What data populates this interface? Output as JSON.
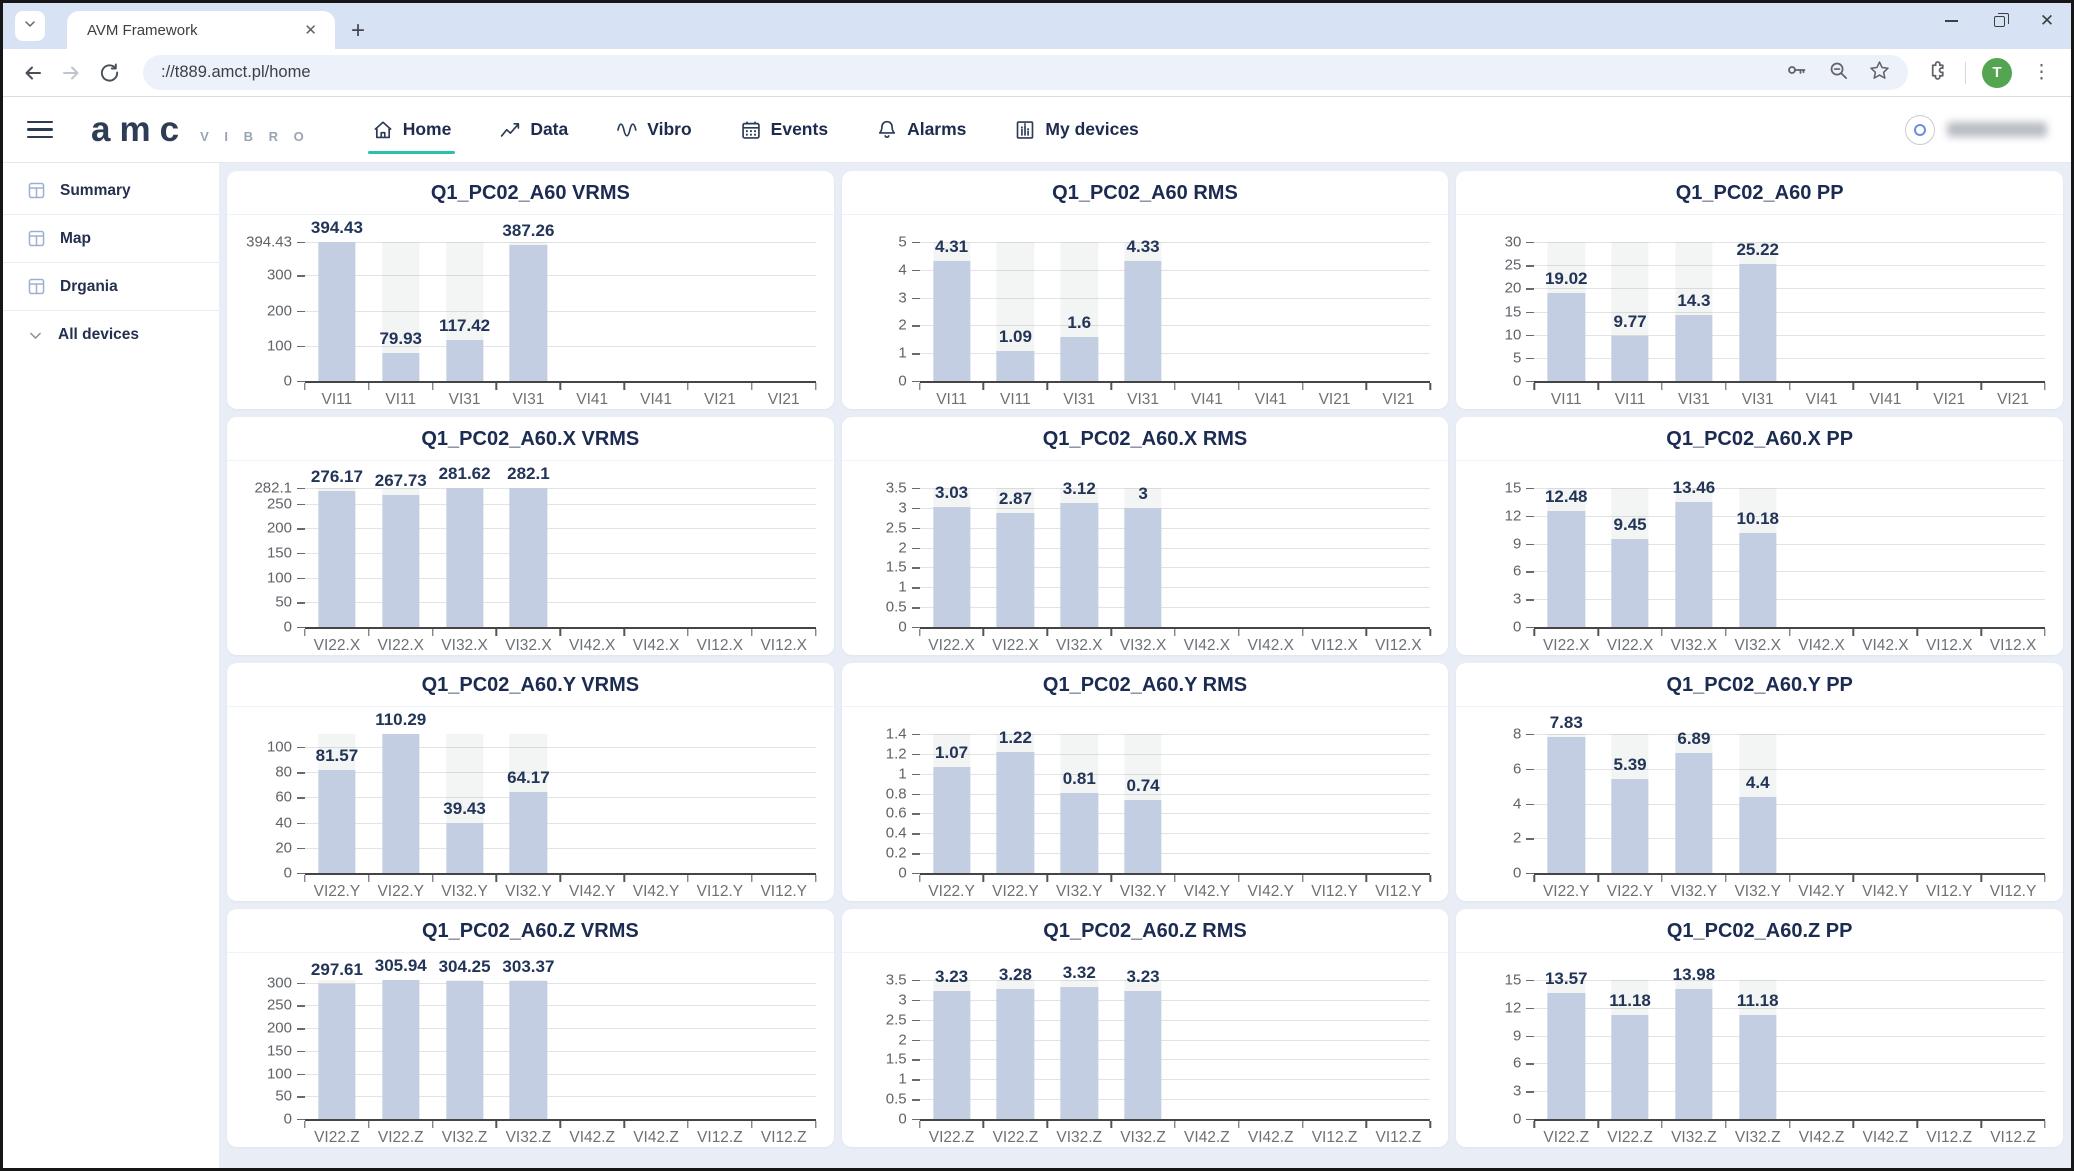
{
  "browser": {
    "tab_title": "AVM Framework",
    "url": "://t889.amct.pl/home",
    "profile_initial": "T",
    "icons": {
      "tab_close_glyph": "✕",
      "new_tab_glyph": "+",
      "window_close_glyph": "✕",
      "kebab_glyph": "⋮"
    }
  },
  "header": {
    "brand_primary": "amc",
    "brand_secondary": "V I B R O",
    "nav_items": [
      {
        "label": "Home",
        "icon": "home-icon",
        "active": true
      },
      {
        "label": "Data",
        "icon": "data-icon",
        "active": false
      },
      {
        "label": "Vibro",
        "icon": "vibro-icon",
        "active": false
      },
      {
        "label": "Events",
        "icon": "events-icon",
        "active": false
      },
      {
        "label": "Alarms",
        "icon": "alarms-icon",
        "active": false
      },
      {
        "label": "My devices",
        "icon": "devices-icon",
        "active": false
      }
    ]
  },
  "sidebar": {
    "items": [
      {
        "label": "Summary",
        "icon": "layout-icon"
      },
      {
        "label": "Map",
        "icon": "layout-icon"
      },
      {
        "label": "Drgania",
        "icon": "layout-icon"
      }
    ],
    "all_devices_label": "All devices",
    "all_devices_icon": "chevron-down-icon"
  },
  "colors": {
    "accent_teal": "#27c2af",
    "bar_fill": "#c3cee2",
    "band_fill": "#f0eff1",
    "title_navy": "#1c2b52",
    "value_navy": "#223457",
    "avatar_green": "#53a551"
  },
  "chart_data": [
    {
      "type": "bar",
      "title": "Q1_PC02_A60 VRMS",
      "ymax": 394.43,
      "ticks": [
        394.43,
        300,
        200,
        100,
        0
      ],
      "categories": [
        "VI11",
        "VI11",
        "VI31",
        "VI31",
        "VI41",
        "VI41",
        "VI21",
        "VI21"
      ],
      "values": [
        394.43,
        79.93,
        117.42,
        387.26
      ],
      "grid": true,
      "legend": "none"
    },
    {
      "type": "bar",
      "title": "Q1_PC02_A60 RMS",
      "ymax": 5,
      "ticks": [
        5,
        4,
        3,
        2,
        1,
        0
      ],
      "categories": [
        "VI11",
        "VI11",
        "VI31",
        "VI31",
        "VI41",
        "VI41",
        "VI21",
        "VI21"
      ],
      "values": [
        4.31,
        1.09,
        1.6,
        4.33
      ],
      "grid": true,
      "legend": "none"
    },
    {
      "type": "bar",
      "title": "Q1_PC02_A60 PP",
      "ymax": 30,
      "ticks": [
        30,
        25,
        20,
        15,
        10,
        5,
        0
      ],
      "categories": [
        "VI11",
        "VI11",
        "VI31",
        "VI31",
        "VI41",
        "VI41",
        "VI21",
        "VI21"
      ],
      "values": [
        19.02,
        9.77,
        14.3,
        25.22
      ],
      "grid": true,
      "legend": "none"
    },
    {
      "type": "bar",
      "title": "Q1_PC02_A60.X VRMS",
      "ymax": 282.1,
      "ticks": [
        282.1,
        250,
        200,
        150,
        100,
        50,
        0
      ],
      "categories": [
        "VI22.X",
        "VI22.X",
        "VI32.X",
        "VI32.X",
        "VI42.X",
        "VI42.X",
        "VI12.X",
        "VI12.X"
      ],
      "values": [
        276.17,
        267.73,
        281.62,
        282.1
      ],
      "grid": true,
      "legend": "none"
    },
    {
      "type": "bar",
      "title": "Q1_PC02_A60.X RMS",
      "ymax": 3.5,
      "ticks": [
        3.5,
        3,
        2.5,
        2,
        1.5,
        1,
        0.5,
        0
      ],
      "categories": [
        "VI22.X",
        "VI22.X",
        "VI32.X",
        "VI32.X",
        "VI42.X",
        "VI42.X",
        "VI12.X",
        "VI12.X"
      ],
      "values": [
        3.03,
        2.87,
        3.12,
        3
      ],
      "grid": true,
      "legend": "none"
    },
    {
      "type": "bar",
      "title": "Q1_PC02_A60.X PP",
      "ymax": 15,
      "ticks": [
        15,
        12,
        9,
        6,
        3,
        0
      ],
      "categories": [
        "VI22.X",
        "VI22.X",
        "VI32.X",
        "VI32.X",
        "VI42.X",
        "VI42.X",
        "VI12.X",
        "VI12.X"
      ],
      "values": [
        12.48,
        9.45,
        13.46,
        10.18
      ],
      "grid": true,
      "legend": "none"
    },
    {
      "type": "bar",
      "title": "Q1_PC02_A60.Y VRMS",
      "ymax": 110.29,
      "ticks": [
        100,
        80,
        60,
        40,
        20,
        0
      ],
      "categories": [
        "VI22.Y",
        "VI22.Y",
        "VI32.Y",
        "VI32.Y",
        "VI42.Y",
        "VI42.Y",
        "VI12.Y",
        "VI12.Y"
      ],
      "values": [
        81.57,
        110.29,
        39.43,
        64.17
      ],
      "grid": true,
      "legend": "none"
    },
    {
      "type": "bar",
      "title": "Q1_PC02_A60.Y RMS",
      "ymax": 1.4,
      "ticks": [
        1.4,
        1.2,
        1,
        0.8,
        0.6,
        0.4,
        0.2,
        0
      ],
      "categories": [
        "VI22.Y",
        "VI22.Y",
        "VI32.Y",
        "VI32.Y",
        "VI42.Y",
        "VI42.Y",
        "VI12.Y",
        "VI12.Y"
      ],
      "values": [
        1.07,
        1.22,
        0.81,
        0.74
      ],
      "grid": true,
      "legend": "none"
    },
    {
      "type": "bar",
      "title": "Q1_PC02_A60.Y PP",
      "ymax": 8,
      "ticks": [
        8,
        6,
        4,
        2,
        0
      ],
      "categories": [
        "VI22.Y",
        "VI22.Y",
        "VI32.Y",
        "VI32.Y",
        "VI42.Y",
        "VI42.Y",
        "VI12.Y",
        "VI12.Y"
      ],
      "values": [
        7.83,
        5.39,
        6.89,
        4.4
      ],
      "grid": true,
      "legend": "none"
    },
    {
      "type": "bar",
      "title": "Q1_PC02_A60.Z VRMS",
      "ymax": 305.94,
      "ticks": [
        300,
        250,
        200,
        150,
        100,
        50,
        0
      ],
      "categories": [
        "VI22.Z",
        "VI22.Z",
        "VI32.Z",
        "VI32.Z",
        "VI42.Z",
        "VI42.Z",
        "VI12.Z",
        "VI12.Z"
      ],
      "values": [
        297.61,
        305.94,
        304.25,
        303.37
      ],
      "grid": true,
      "legend": "none"
    },
    {
      "type": "bar",
      "title": "Q1_PC02_A60.Z RMS",
      "ymax": 3.5,
      "ticks": [
        3.5,
        3,
        2.5,
        2,
        1.5,
        1,
        0.5,
        0
      ],
      "categories": [
        "VI22.Z",
        "VI22.Z",
        "VI32.Z",
        "VI32.Z",
        "VI42.Z",
        "VI42.Z",
        "VI12.Z",
        "VI12.Z"
      ],
      "values": [
        3.23,
        3.28,
        3.32,
        3.23
      ],
      "grid": true,
      "legend": "none"
    },
    {
      "type": "bar",
      "title": "Q1_PC02_A60.Z PP",
      "ymax": 15,
      "ticks": [
        15,
        12,
        9,
        6,
        3,
        0
      ],
      "categories": [
        "VI22.Z",
        "VI22.Z",
        "VI32.Z",
        "VI32.Z",
        "VI42.Z",
        "VI42.Z",
        "VI12.Z",
        "VI12.Z"
      ],
      "values": [
        13.57,
        11.18,
        13.98,
        11.18
      ],
      "grid": true,
      "legend": "none"
    }
  ]
}
